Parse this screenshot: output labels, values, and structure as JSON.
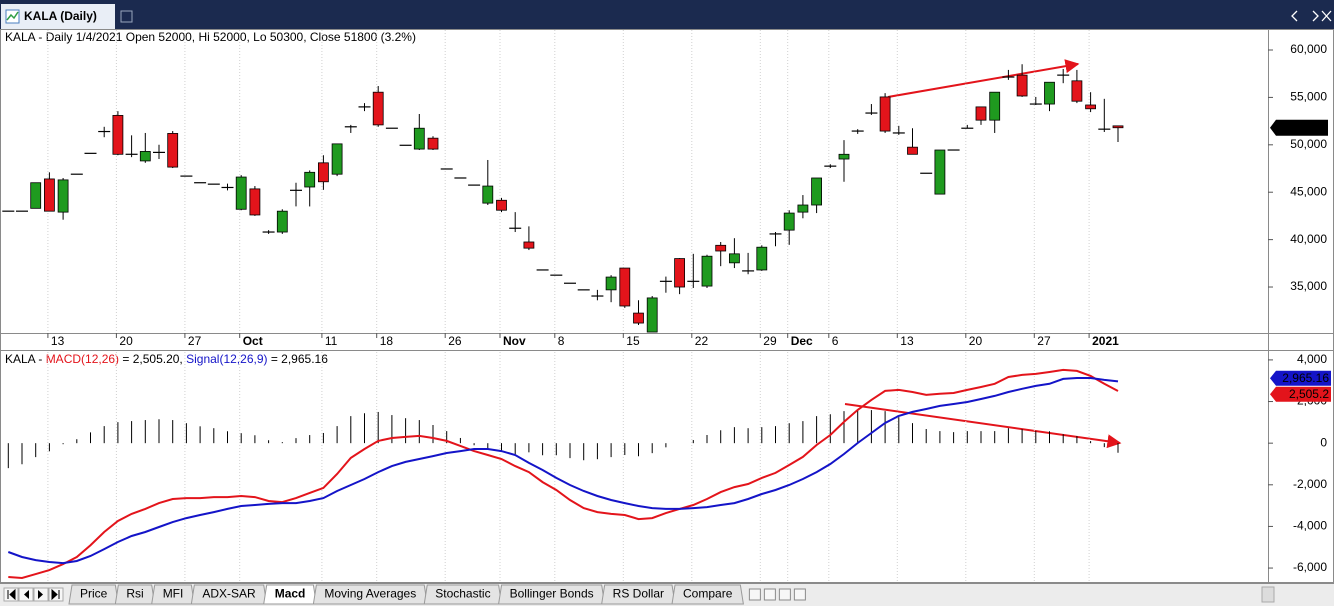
{
  "window": {
    "title": "KALA (Daily)"
  },
  "chart_data": [
    {
      "type": "candlestick",
      "title": "KALA - Daily 1/4/2021 Open 52000, Hi 52000, Lo 50300, Close 51800 (3.2%)",
      "categories": [
        null,
        null,
        null,
        "13",
        null,
        null,
        null,
        null,
        "20",
        null,
        null,
        null,
        null,
        "27",
        null,
        null,
        null,
        "Oct",
        null,
        null,
        null,
        null,
        null,
        "11",
        null,
        null,
        null,
        "18",
        null,
        null,
        null,
        null,
        "26",
        null,
        null,
        null,
        "Nov",
        null,
        null,
        null,
        "8",
        null,
        null,
        null,
        null,
        "15",
        null,
        null,
        null,
        null,
        "22",
        null,
        null,
        null,
        null,
        "29",
        null,
        "Dec",
        null,
        null,
        "6",
        null,
        null,
        null,
        null,
        "13",
        null,
        null,
        null,
        null,
        "20",
        null,
        null,
        null,
        null,
        "27",
        null,
        null,
        null,
        "2021",
        null,
        null
      ],
      "open": [
        43000,
        43000,
        43300,
        46400,
        42900,
        46900,
        49100,
        51400,
        53100,
        49000,
        48300,
        49200,
        51200,
        46700,
        46000,
        45850,
        45500,
        43200,
        45350,
        40800,
        40800,
        45200,
        45550,
        48100,
        46900,
        51900,
        54000,
        55550,
        51750,
        49950,
        49550,
        50700,
        47450,
        46500,
        45750,
        43850,
        44150,
        41200,
        39750,
        36800,
        36250,
        35400,
        34700,
        34050,
        34700,
        37000,
        32250,
        30250,
        35600,
        38000,
        35600,
        35100,
        39400,
        37550,
        36700,
        36800,
        40600,
        41000,
        42900,
        43650,
        47750,
        48500,
        51450,
        53350,
        55050,
        51250,
        49750,
        47000,
        44800,
        49450,
        51750,
        54000,
        52600,
        57150,
        57350,
        54300,
        54300,
        57350,
        56750,
        54200,
        51650,
        52000
      ],
      "high": [
        43000,
        43000,
        46000,
        47100,
        46500,
        46900,
        49100,
        51900,
        53550,
        51000,
        51250,
        50000,
        51450,
        46700,
        46000,
        45850,
        45900,
        46800,
        45650,
        41000,
        43200,
        46000,
        47300,
        48900,
        50100,
        52100,
        54400,
        56200,
        51750,
        49950,
        53250,
        50900,
        47450,
        46500,
        45750,
        48400,
        44400,
        42900,
        41400,
        36800,
        36250,
        35400,
        34700,
        34700,
        36250,
        37000,
        33600,
        34050,
        36100,
        38050,
        38500,
        38400,
        39750,
        40150,
        38600,
        39400,
        40800,
        43100,
        44700,
        46500,
        47950,
        50500,
        51650,
        54300,
        55450,
        52000,
        51750,
        47000,
        49450,
        49450,
        52100,
        54000,
        55550,
        57900,
        58500,
        55050,
        56600,
        58000,
        57900,
        55550,
        54850,
        52000
      ],
      "low": [
        43000,
        43000,
        43300,
        43000,
        42100,
        46900,
        49100,
        50800,
        48900,
        48700,
        48100,
        48500,
        47550,
        46700,
        46000,
        45850,
        45200,
        43100,
        42500,
        40600,
        40600,
        43500,
        43500,
        45250,
        46700,
        51250,
        53550,
        51900,
        51750,
        49950,
        49450,
        49450,
        47450,
        46500,
        45750,
        43650,
        42900,
        40800,
        38900,
        36800,
        36250,
        35400,
        34700,
        33600,
        33400,
        32800,
        31000,
        30250,
        34400,
        34250,
        34900,
        34900,
        37200,
        37000,
        36350,
        36700,
        39300,
        39450,
        42250,
        42800,
        47550,
        46100,
        51150,
        53150,
        51250,
        51050,
        49000,
        47000,
        44800,
        49450,
        51750,
        52100,
        51250,
        56850,
        55050,
        54200,
        53550,
        56500,
        54400,
        53450,
        51350,
        50300
      ],
      "close": [
        43000,
        43000,
        46000,
        43000,
        46300,
        46900,
        49100,
        51400,
        49000,
        49000,
        49300,
        49200,
        47650,
        46700,
        46000,
        45850,
        45500,
        46600,
        42600,
        40800,
        43000,
        45200,
        47100,
        46100,
        50100,
        51900,
        54000,
        52100,
        51750,
        49950,
        51750,
        49550,
        47450,
        46500,
        45750,
        45650,
        43100,
        41200,
        39100,
        36800,
        36250,
        35400,
        34700,
        34050,
        36050,
        33000,
        31200,
        33850,
        35600,
        35000,
        35600,
        38250,
        38800,
        38500,
        36700,
        39200,
        40600,
        42800,
        43650,
        46500,
        47750,
        49000,
        51450,
        53350,
        51450,
        51250,
        49000,
        47000,
        49450,
        49450,
        51750,
        52600,
        55550,
        57150,
        55150,
        54300,
        56600,
        57350,
        54600,
        53800,
        51650,
        51800
      ],
      "up_color": "#1f9a1f",
      "down_color": "#e3141b",
      "ylim": [
        30150,
        62110
      ],
      "yticks": [
        {
          "value": 35000,
          "label": "35,000"
        },
        {
          "value": 40000,
          "label": "40,000"
        },
        {
          "value": 45000,
          "label": "45,000"
        },
        {
          "value": 50000,
          "label": "50,000"
        },
        {
          "value": 55000,
          "label": "55,000"
        },
        {
          "value": 60000,
          "label": "60,000"
        }
      ],
      "last_price": {
        "value": 51800,
        "label": "51,800"
      },
      "vertical_grid": true
    },
    {
      "type": "macd",
      "label": "KALA - ",
      "series": [
        {
          "name": "MACD(12,26)",
          "color": "#e3141b",
          "legend_value": " = 2,505.20, ",
          "tag_label": "2,505.2",
          "values": [
            -6430,
            -6480,
            -6290,
            -6100,
            -5810,
            -5470,
            -4900,
            -4270,
            -3740,
            -3400,
            -3160,
            -2880,
            -2680,
            -2640,
            -2640,
            -2590,
            -2590,
            -2540,
            -2590,
            -2780,
            -2830,
            -2640,
            -2390,
            -2150,
            -1480,
            -710,
            -280,
            110,
            250,
            300,
            350,
            250,
            110,
            -130,
            -380,
            -570,
            -760,
            -1100,
            -1390,
            -1870,
            -2250,
            -2730,
            -3120,
            -3310,
            -3400,
            -3450,
            -3650,
            -3600,
            -3360,
            -3160,
            -2970,
            -2680,
            -2350,
            -2110,
            -1960,
            -1670,
            -1430,
            -1050,
            -660,
            -90,
            390,
            1020,
            1600,
            2080,
            2510,
            2560,
            2460,
            2320,
            2370,
            2410,
            2560,
            2700,
            2850,
            3180,
            3280,
            3330,
            3420,
            3520,
            3470,
            3230,
            2850,
            2505.2
          ]
        },
        {
          "name": "Signal(12,26,9)",
          "color": "#1414c8",
          "legend_value": " = 2,965.16",
          "tag_label": "2,965.16",
          "values": [
            -5230,
            -5470,
            -5620,
            -5710,
            -5760,
            -5660,
            -5420,
            -5090,
            -4750,
            -4460,
            -4270,
            -4030,
            -3790,
            -3600,
            -3450,
            -3310,
            -3160,
            -3020,
            -2970,
            -2920,
            -2880,
            -2880,
            -2780,
            -2640,
            -2300,
            -2010,
            -1720,
            -1390,
            -1100,
            -900,
            -760,
            -620,
            -470,
            -380,
            -280,
            -280,
            -380,
            -570,
            -950,
            -1290,
            -1670,
            -2010,
            -2300,
            -2540,
            -2730,
            -2880,
            -3020,
            -3120,
            -3160,
            -3160,
            -3120,
            -3070,
            -2970,
            -2880,
            -2680,
            -2440,
            -2250,
            -2010,
            -1720,
            -1390,
            -1000,
            -520,
            10,
            490,
            970,
            1310,
            1500,
            1640,
            1790,
            1880,
            1980,
            2120,
            2270,
            2460,
            2610,
            2750,
            2850,
            3090,
            3130,
            3130,
            3040,
            2965.16
          ]
        }
      ],
      "histogram": {
        "color": "#000000",
        "values": [
          -1200,
          -1010,
          -670,
          -390,
          -50,
          190,
          520,
          820,
          1010,
          1060,
          1110,
          1150,
          1110,
          960,
          810,
          720,
          570,
          480,
          380,
          140,
          50,
          240,
          390,
          490,
          820,
          1300,
          1440,
          1500,
          1350,
          1200,
          1110,
          870,
          580,
          250,
          -100,
          -290,
          -380,
          -530,
          -440,
          -580,
          -580,
          -720,
          -820,
          -770,
          -670,
          -570,
          -630,
          -480,
          -200,
          0,
          150,
          390,
          620,
          770,
          720,
          770,
          820,
          960,
          1060,
          1300,
          1390,
          1540,
          1590,
          1590,
          1540,
          1250,
          960,
          680,
          580,
          530,
          580,
          580,
          580,
          720,
          670,
          580,
          570,
          430,
          340,
          100,
          -190,
          -460
        ]
      },
      "ylim": [
        -6670,
        4380
      ],
      "yticks": [
        {
          "value": -6000,
          "label": "-6,000"
        },
        {
          "value": -4000,
          "label": "-4,000"
        },
        {
          "value": -2000,
          "label": "-2,000"
        },
        0,
        {
          "value": 2000,
          "label": "2,000"
        },
        {
          "value": 4000,
          "label": "4,000"
        }
      ]
    }
  ],
  "tabs": [
    "Price",
    "Rsi",
    "MFI",
    "ADX-SAR",
    "Macd",
    "Moving Averages",
    "Stochastic",
    "Bollinger Bonds",
    "RS Dollar",
    "Compare"
  ],
  "active_tab": "Macd"
}
